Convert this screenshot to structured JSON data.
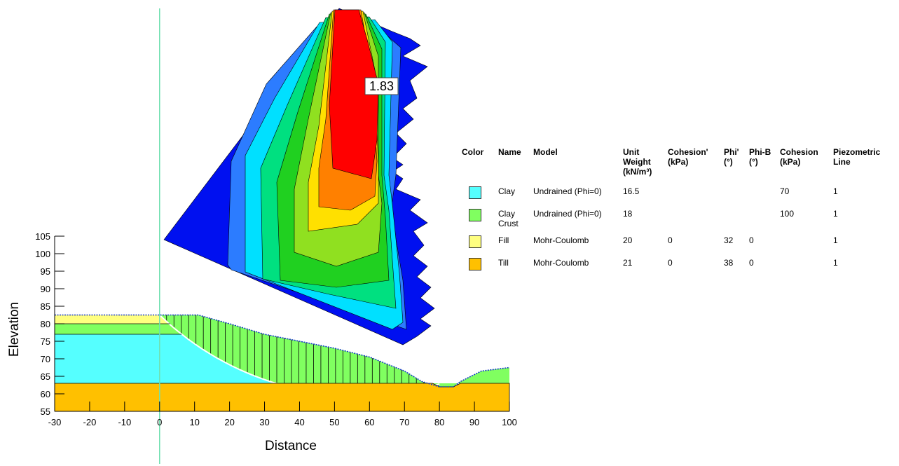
{
  "chart_data": {
    "type": "slope-section",
    "x_label": "Distance",
    "y_label": "Elevation",
    "xlim": [
      -30,
      100
    ],
    "xticks": [
      -30,
      -20,
      -10,
      0,
      10,
      20,
      30,
      40,
      50,
      60,
      70,
      80,
      90,
      100
    ],
    "ylim": [
      55,
      105
    ],
    "yticks": [
      55,
      60,
      65,
      70,
      75,
      80,
      85,
      90,
      95,
      100,
      105
    ],
    "factor_of_safety": "1.83",
    "materials": {
      "columns": [
        "Color",
        "Name",
        "Model",
        "Unit Weight (kN/m³)",
        "Cohesion' (kPa)",
        "Phi' (°)",
        "Phi-B (°)",
        "Cohesion (kPa)",
        "Piezometric Line"
      ],
      "rows": [
        {
          "color": "#55ffff",
          "name": "Clay",
          "model": "Undrained (Phi=0)",
          "unit_weight": 16.5,
          "cohesion": 70,
          "piezometric_line": 1
        },
        {
          "color": "#80ff60",
          "name": "Clay Crust",
          "model": "Undrained (Phi=0)",
          "unit_weight": 18,
          "cohesion": 100,
          "piezometric_line": 1
        },
        {
          "color": "#ffff80",
          "name": "Fill",
          "model": "Mohr-Coulomb",
          "unit_weight": 20,
          "cohesion_eff": 0,
          "phi_eff": 32,
          "phi_b": 0,
          "piezometric_line": 1
        },
        {
          "color": "#ffc000",
          "name": "Till",
          "model": "Mohr-Coulomb",
          "unit_weight": 21,
          "cohesion_eff": 0,
          "phi_eff": 38,
          "phi_b": 0,
          "piezometric_line": 1
        }
      ]
    }
  }
}
